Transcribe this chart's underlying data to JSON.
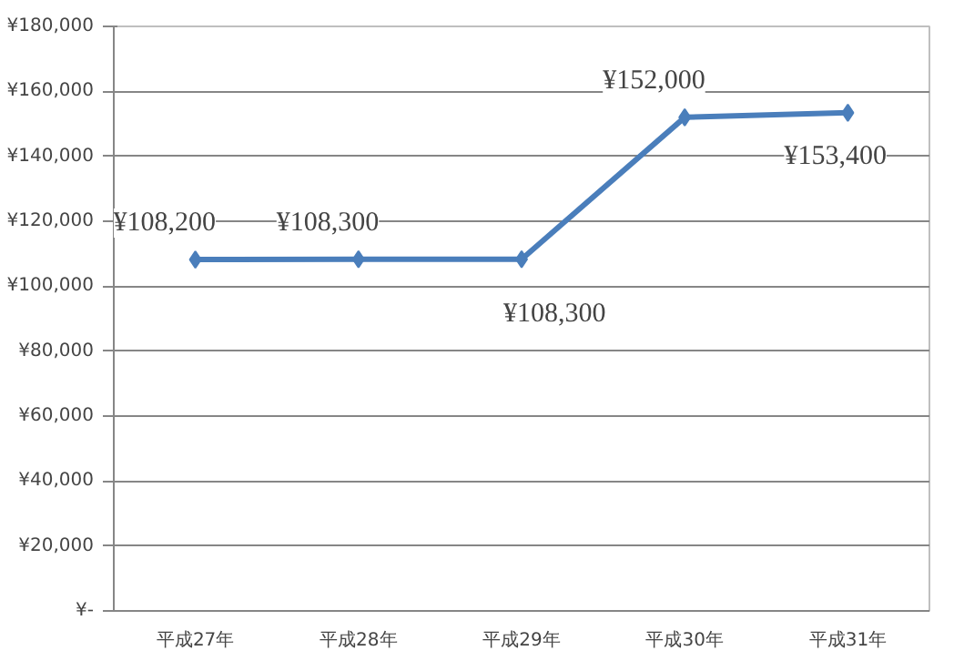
{
  "chart_data": {
    "type": "line",
    "categories": [
      "平成27年",
      "平成28年",
      "平成29年",
      "平成30年",
      "平成31年"
    ],
    "series": [
      {
        "color": "#4a7ebb",
        "values": [
          108200,
          108300,
          108300,
          152000,
          153400
        ],
        "value_labels": [
          "¥108,200",
          "¥108,300",
          "¥108,300",
          "¥152,000",
          "¥153,400"
        ]
      }
    ],
    "ylim": [
      0,
      180000
    ],
    "yticks": [
      {
        "value": 0,
        "label": "¥-"
      },
      {
        "value": 20000,
        "label": "¥20,000"
      },
      {
        "value": 40000,
        "label": "¥40,000"
      },
      {
        "value": 60000,
        "label": "¥60,000"
      },
      {
        "value": 80000,
        "label": "¥80,000"
      },
      {
        "value": 100000,
        "label": "¥100,000"
      },
      {
        "value": 120000,
        "label": "¥120,000"
      },
      {
        "value": 140000,
        "label": "¥140,000"
      },
      {
        "value": 160000,
        "label": "¥160,000"
      },
      {
        "value": 180000,
        "label": "¥180,000"
      }
    ],
    "grid": "y",
    "marker": "diamond",
    "line_style": "solid"
  }
}
